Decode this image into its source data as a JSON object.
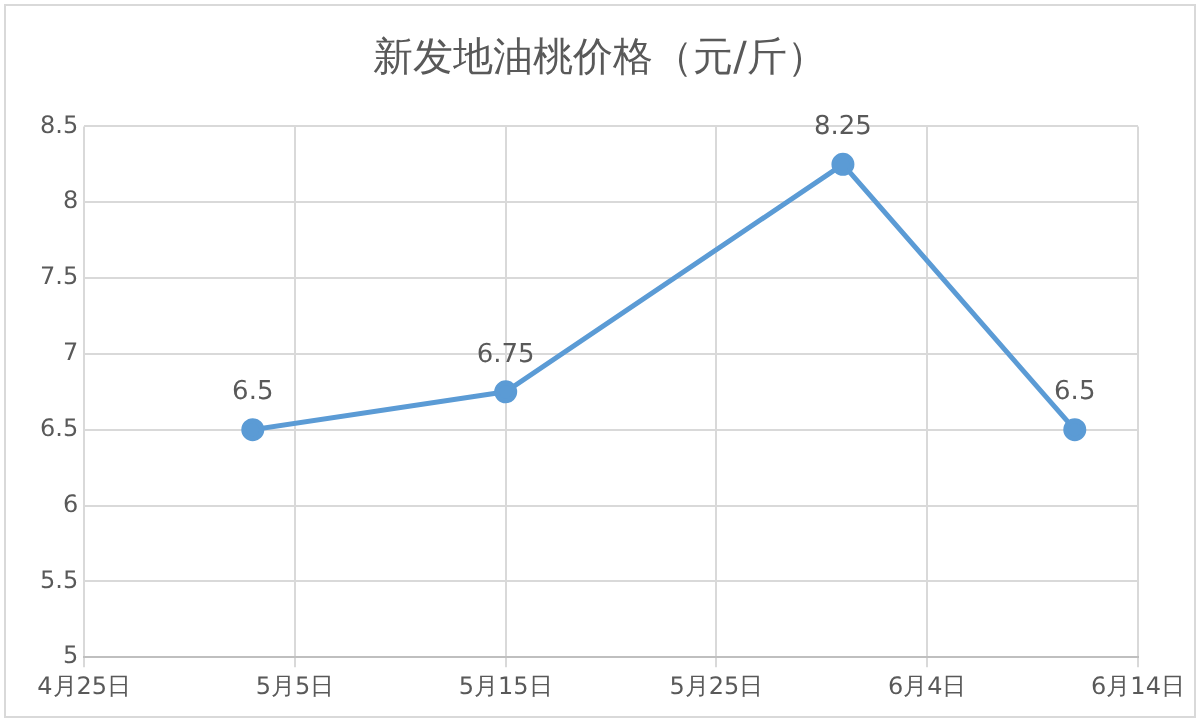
{
  "chart_data": {
    "type": "line",
    "title": "新发地油桃价格（元/斤）",
    "x": [
      "--05-03",
      "--05-15",
      "--05-31",
      "--06-11"
    ],
    "series": [
      {
        "color": "#5b9bd5",
        "values": [
          6.5,
          6.75,
          8.25,
          6.5
        ]
      }
    ],
    "xlim": [
      "--04-25",
      "--06-14"
    ],
    "xticks": [
      {
        "value": "--04-25",
        "label": "4月25日"
      },
      {
        "value": "--05-05",
        "label": "5月5日"
      },
      {
        "value": "--05-15",
        "label": "5月15日"
      },
      {
        "value": "--05-25",
        "label": "5月25日"
      },
      {
        "value": "--06-04",
        "label": "6月4日"
      },
      {
        "value": "--06-14",
        "label": "6月14日"
      }
    ],
    "ylim": [
      5,
      8.5
    ],
    "yticks": [
      5,
      5.5,
      6,
      6.5,
      7,
      7.5,
      8,
      8.5
    ],
    "grid": true,
    "legend": false,
    "marker": "circle",
    "line_style": "solid",
    "data_labels": true
  }
}
